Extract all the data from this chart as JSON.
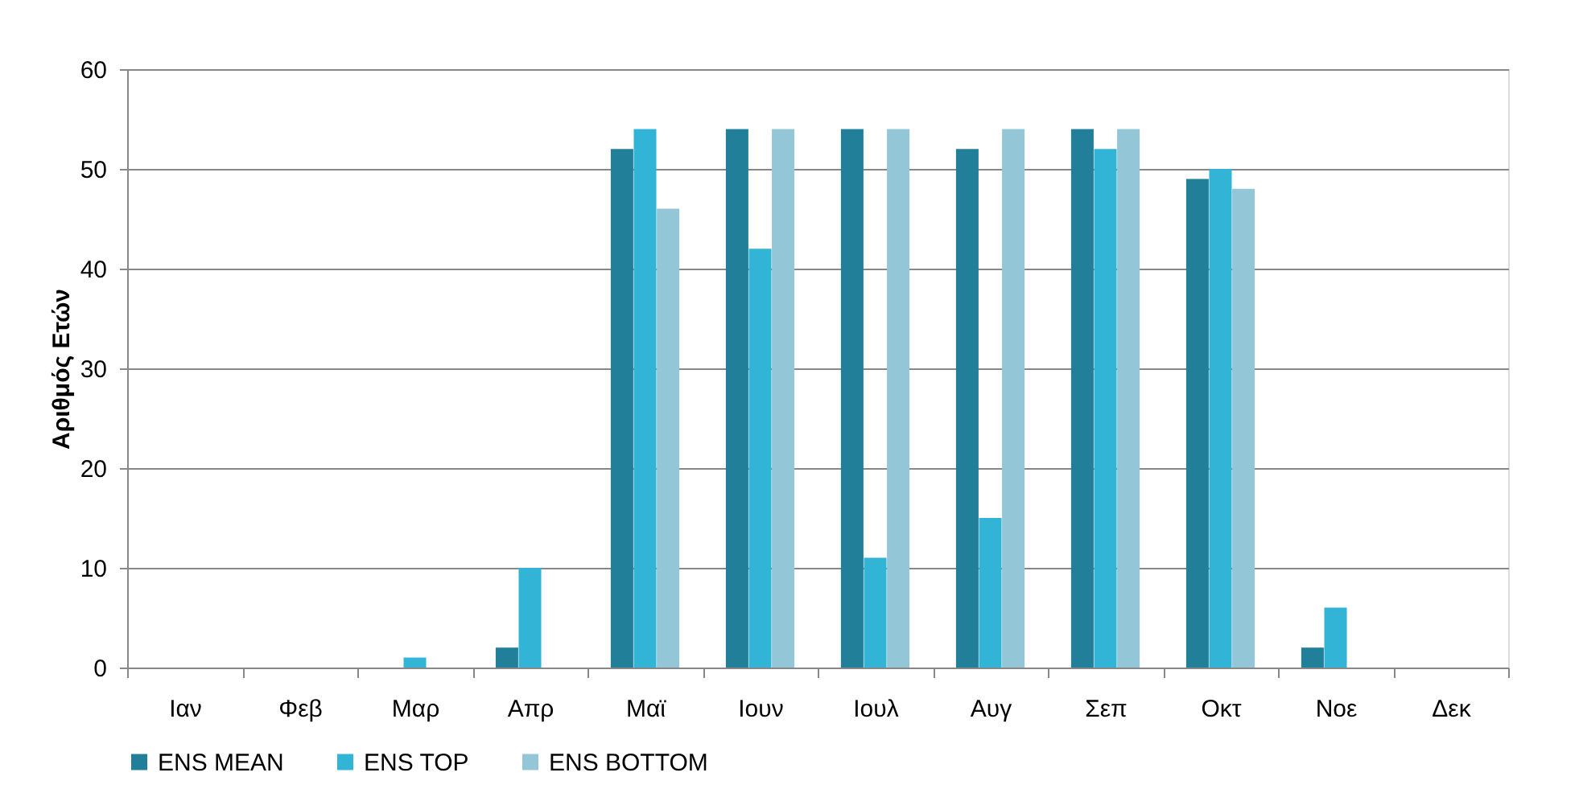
{
  "chart_data": {
    "type": "bar",
    "ylabel": "Αριθμός Ετών",
    "categories": [
      "Ιαν",
      "Φεβ",
      "Μαρ",
      "Απρ",
      "Μαϊ",
      "Ιουν",
      "Ιουλ",
      "Αυγ",
      "Σεπ",
      "Οκτ",
      "Νοε",
      "Δεκ"
    ],
    "series": [
      {
        "name": "ENS MEAN",
        "color": "#217f9a",
        "values": [
          0,
          0,
          0,
          2,
          52,
          54,
          54,
          52,
          54,
          49,
          2,
          0
        ]
      },
      {
        "name": "ENS TOP",
        "color": "#31b4d6",
        "values": [
          0,
          0,
          1,
          10,
          54,
          42,
          11,
          15,
          52,
          50,
          6,
          0
        ]
      },
      {
        "name": "ENS BOTTOM",
        "color": "#93c6d6",
        "values": [
          0,
          0,
          0,
          0,
          46,
          54,
          54,
          54,
          54,
          48,
          0,
          0
        ]
      }
    ],
    "ylim": [
      0,
      60
    ],
    "yticks": [
      0,
      10,
      20,
      30,
      40,
      50,
      60
    ],
    "grid": "y",
    "legend": "bottom"
  }
}
